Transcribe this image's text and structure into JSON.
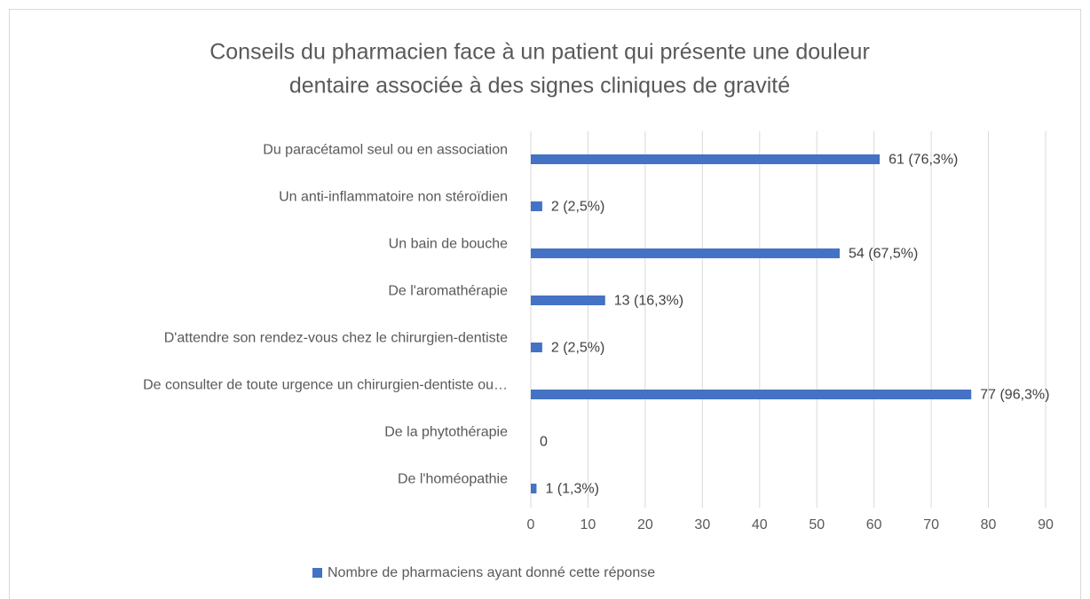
{
  "chart_data": {
    "type": "bar",
    "orientation": "horizontal",
    "title": [
      "Conseils du pharmacien face à un patient qui présente une douleur",
      "dentaire associée à des signes cliniques de gravité"
    ],
    "categories": [
      "Du paracétamol seul ou en association",
      "Un anti-inflammatoire non stéroïdien",
      "Un bain de bouche",
      "De l'aromathérapie",
      "D'attendre son rendez-vous chez le chirurgien-dentiste",
      "De consulter de toute urgence un chirurgien-dentiste ou…",
      "De la phytothérapie",
      "De l'homéopathie"
    ],
    "series": [
      {
        "name": "Nombre de pharmaciens ayant donné cette réponse",
        "color": "#4472c4",
        "values": [
          61,
          2,
          54,
          13,
          2,
          77,
          0,
          1
        ],
        "value_labels": [
          "61 (76,3%)",
          "2 (2,5%)",
          "54 (67,5%)",
          "13 (16,3%)",
          "2 (2,5%)",
          "77 (96,3%)",
          "0",
          "1 (1,3%)"
        ]
      }
    ],
    "xlim": [
      0,
      90
    ],
    "xticks": [
      0,
      10,
      20,
      30,
      40,
      50,
      60,
      70,
      80,
      90
    ],
    "grid": true,
    "legend": "bottom"
  }
}
